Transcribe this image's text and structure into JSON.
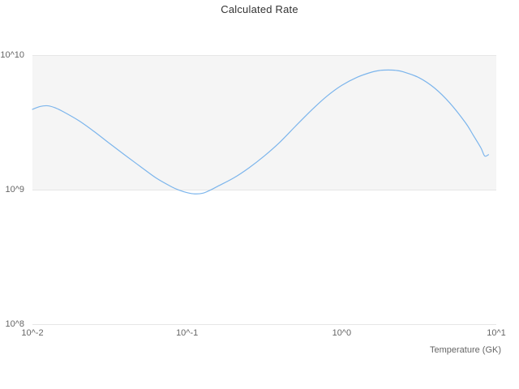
{
  "chart": {
    "title": "Calculated Rate",
    "x_axis_title": "Temperature (GK)"
  },
  "colors": {
    "series_line": "#7cb5ec",
    "plot_band": "#f5f5f5",
    "gridline": "#e6e6e6",
    "tick_text": "#666666",
    "title_text": "#333333",
    "background": "#ffffff"
  },
  "chart_data": {
    "type": "line",
    "title": "Calculated Rate",
    "xlabel": "Temperature (GK)",
    "ylabel": "",
    "x_scale": "log",
    "y_scale": "log",
    "xlim": [
      0.01,
      10
    ],
    "ylim": [
      100000000.0,
      10000000000.0
    ],
    "grid": {
      "horizontal": true,
      "vertical": false,
      "color": "#e6e6e6"
    },
    "x_ticks": [
      {
        "value": 0.01,
        "label": "10^-2"
      },
      {
        "value": 0.1,
        "label": "10^-1"
      },
      {
        "value": 1,
        "label": "10^0"
      },
      {
        "value": 10,
        "label": "10^1"
      }
    ],
    "y_ticks": [
      {
        "value": 100000000.0,
        "label": "10^8"
      },
      {
        "value": 1000000000.0,
        "label": "10^9"
      },
      {
        "value": 10000000000.0,
        "label": "10^10"
      }
    ],
    "plot_band": {
      "from": 1000000000.0,
      "to": 10000000000.0,
      "color": "#f5f5f5"
    },
    "series": [
      {
        "name": "Calculated Rate",
        "color": "#7cb5ec",
        "points": [
          [
            0.01,
            3950000000.0
          ],
          [
            0.0112,
            4150000000.0
          ],
          [
            0.0126,
            4200000000.0
          ],
          [
            0.0141,
            4050000000.0
          ],
          [
            0.0158,
            3800000000.0
          ],
          [
            0.02,
            3250000000.0
          ],
          [
            0.0251,
            2700000000.0
          ],
          [
            0.0316,
            2200000000.0
          ],
          [
            0.0398,
            1800000000.0
          ],
          [
            0.0501,
            1480000000.0
          ],
          [
            0.0631,
            1220000000.0
          ],
          [
            0.0794,
            1050000000.0
          ],
          [
            0.0891,
            990000000.0
          ],
          [
            0.1,
            950000000.0
          ],
          [
            0.112,
            930000000.0
          ],
          [
            0.126,
            940000000.0
          ],
          [
            0.141,
            990000000.0
          ],
          [
            0.158,
            1060000000.0
          ],
          [
            0.2,
            1220000000.0
          ],
          [
            0.251,
            1450000000.0
          ],
          [
            0.316,
            1780000000.0
          ],
          [
            0.398,
            2250000000.0
          ],
          [
            0.501,
            2950000000.0
          ],
          [
            0.631,
            3850000000.0
          ],
          [
            0.794,
            4900000000.0
          ],
          [
            1.0,
            5950000000.0
          ],
          [
            1.26,
            6850000000.0
          ],
          [
            1.58,
            7500000000.0
          ],
          [
            1.78,
            7700000000.0
          ],
          [
            2.0,
            7750000000.0
          ],
          [
            2.24,
            7700000000.0
          ],
          [
            2.51,
            7500000000.0
          ],
          [
            3.16,
            6800000000.0
          ],
          [
            3.98,
            5700000000.0
          ],
          [
            5.01,
            4400000000.0
          ],
          [
            6.31,
            3150000000.0
          ],
          [
            7.08,
            2550000000.0
          ],
          [
            7.94,
            2050000000.0
          ],
          [
            8.41,
            1780000000.0
          ],
          [
            8.91,
            1820000000.0
          ]
        ]
      }
    ]
  }
}
